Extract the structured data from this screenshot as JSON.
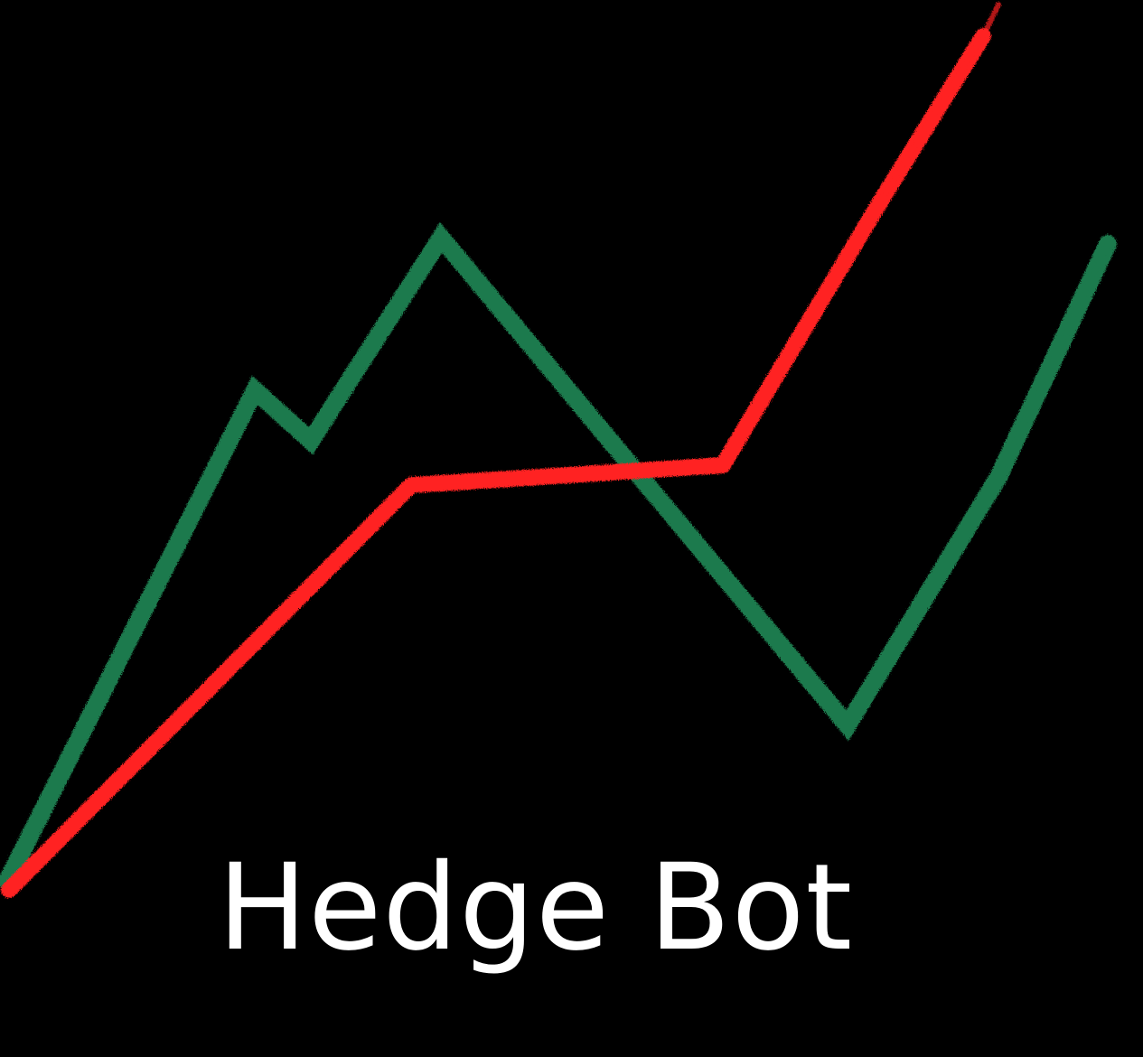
{
  "logo": {
    "title": "Hedge Bot",
    "background_color": "#000000",
    "title_color": "#ffffff",
    "green_line_color": "#1f7a4d",
    "red_line_color": "#ff2222",
    "icons": [
      "green-zigzag-line",
      "red-rising-line"
    ]
  }
}
